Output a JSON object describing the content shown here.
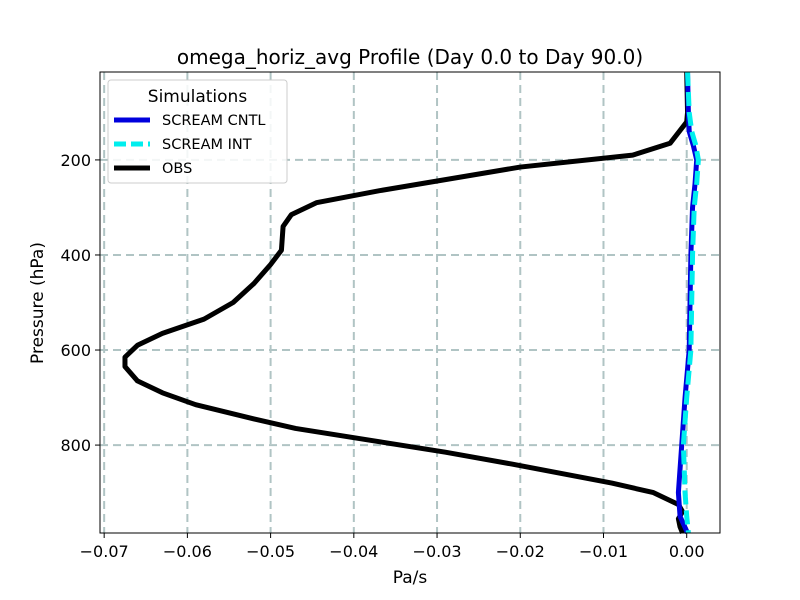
{
  "chart_data": {
    "type": "line",
    "title": "omega_horiz_avg Profile (Day 0.0 to Day 90.0)",
    "xlabel": "Pa/s",
    "ylabel": "Pressure (hPa)",
    "xlim": [
      -0.0705,
      0.004
    ],
    "ylim": [
      985,
      15
    ],
    "y_inverted": true,
    "grid": true,
    "x_ticks": [
      -0.07,
      -0.06,
      -0.05,
      -0.04,
      -0.03,
      -0.02,
      -0.01,
      0.0
    ],
    "x_tick_labels": [
      "−0.07",
      "−0.06",
      "−0.05",
      "−0.04",
      "−0.03",
      "−0.02",
      "−0.01",
      "0.00"
    ],
    "y_ticks": [
      200,
      400,
      600,
      800
    ],
    "y_tick_labels": [
      "200",
      "400",
      "600",
      "800"
    ],
    "legend": {
      "title": "Simulations",
      "placement": "top-left"
    },
    "series": [
      {
        "name": "SCREAM CNTL",
        "color": "#0000dd",
        "style": "solid",
        "points": [
          {
            "x": 0.0001,
            "y": 15
          },
          {
            "x": 0.0002,
            "y": 100
          },
          {
            "x": 0.0003,
            "y": 140
          },
          {
            "x": 0.0008,
            "y": 170
          },
          {
            "x": 0.0012,
            "y": 200
          },
          {
            "x": 0.001,
            "y": 250
          },
          {
            "x": 0.0007,
            "y": 300
          },
          {
            "x": 0.0005,
            "y": 400
          },
          {
            "x": 0.0004,
            "y": 500
          },
          {
            "x": 0.0003,
            "y": 600
          },
          {
            "x": -0.0002,
            "y": 700
          },
          {
            "x": -0.0006,
            "y": 800
          },
          {
            "x": -0.001,
            "y": 900
          },
          {
            "x": -0.0008,
            "y": 950
          },
          {
            "x": 0.0001,
            "y": 985
          }
        ]
      },
      {
        "name": "SCREAM INT",
        "color": "#00eeee",
        "style": "dashed",
        "points": [
          {
            "x": 0.0001,
            "y": 15
          },
          {
            "x": 0.0003,
            "y": 100
          },
          {
            "x": 0.0006,
            "y": 140
          },
          {
            "x": 0.0011,
            "y": 170
          },
          {
            "x": 0.0014,
            "y": 200
          },
          {
            "x": 0.0012,
            "y": 250
          },
          {
            "x": 0.0009,
            "y": 300
          },
          {
            "x": 0.0007,
            "y": 400
          },
          {
            "x": 0.0006,
            "y": 500
          },
          {
            "x": 0.0005,
            "y": 600
          },
          {
            "x": 0.0,
            "y": 700
          },
          {
            "x": -0.0004,
            "y": 800
          },
          {
            "x": -0.0002,
            "y": 900
          },
          {
            "x": 0.0,
            "y": 950
          },
          {
            "x": 0.0002,
            "y": 985
          }
        ]
      },
      {
        "name": "OBS",
        "color": "#000000",
        "style": "solid",
        "points": [
          {
            "x": 0.0,
            "y": 15
          },
          {
            "x": 0.0001,
            "y": 100
          },
          {
            "x": 0.0,
            "y": 120
          },
          {
            "x": -0.002,
            "y": 165
          },
          {
            "x": -0.0065,
            "y": 190
          },
          {
            "x": -0.02,
            "y": 215
          },
          {
            "x": -0.037,
            "y": 265
          },
          {
            "x": -0.0445,
            "y": 290
          },
          {
            "x": -0.0475,
            "y": 315
          },
          {
            "x": -0.0485,
            "y": 340
          },
          {
            "x": -0.0487,
            "y": 390
          },
          {
            "x": -0.05,
            "y": 420
          },
          {
            "x": -0.052,
            "y": 460
          },
          {
            "x": -0.0545,
            "y": 500
          },
          {
            "x": -0.058,
            "y": 535
          },
          {
            "x": -0.063,
            "y": 565
          },
          {
            "x": -0.066,
            "y": 590
          },
          {
            "x": -0.0675,
            "y": 615
          },
          {
            "x": -0.0675,
            "y": 635
          },
          {
            "x": -0.066,
            "y": 665
          },
          {
            "x": -0.063,
            "y": 690
          },
          {
            "x": -0.059,
            "y": 715
          },
          {
            "x": -0.052,
            "y": 745
          },
          {
            "x": -0.047,
            "y": 765
          },
          {
            "x": -0.038,
            "y": 790
          },
          {
            "x": -0.029,
            "y": 815
          },
          {
            "x": -0.021,
            "y": 840
          },
          {
            "x": -0.015,
            "y": 860
          },
          {
            "x": -0.009,
            "y": 880
          },
          {
            "x": -0.004,
            "y": 900
          },
          {
            "x": -0.001,
            "y": 925
          },
          {
            "x": -0.0005,
            "y": 940
          },
          {
            "x": -0.001,
            "y": 955
          },
          {
            "x": -0.0008,
            "y": 972
          },
          {
            "x": -0.0005,
            "y": 985
          }
        ]
      }
    ]
  }
}
